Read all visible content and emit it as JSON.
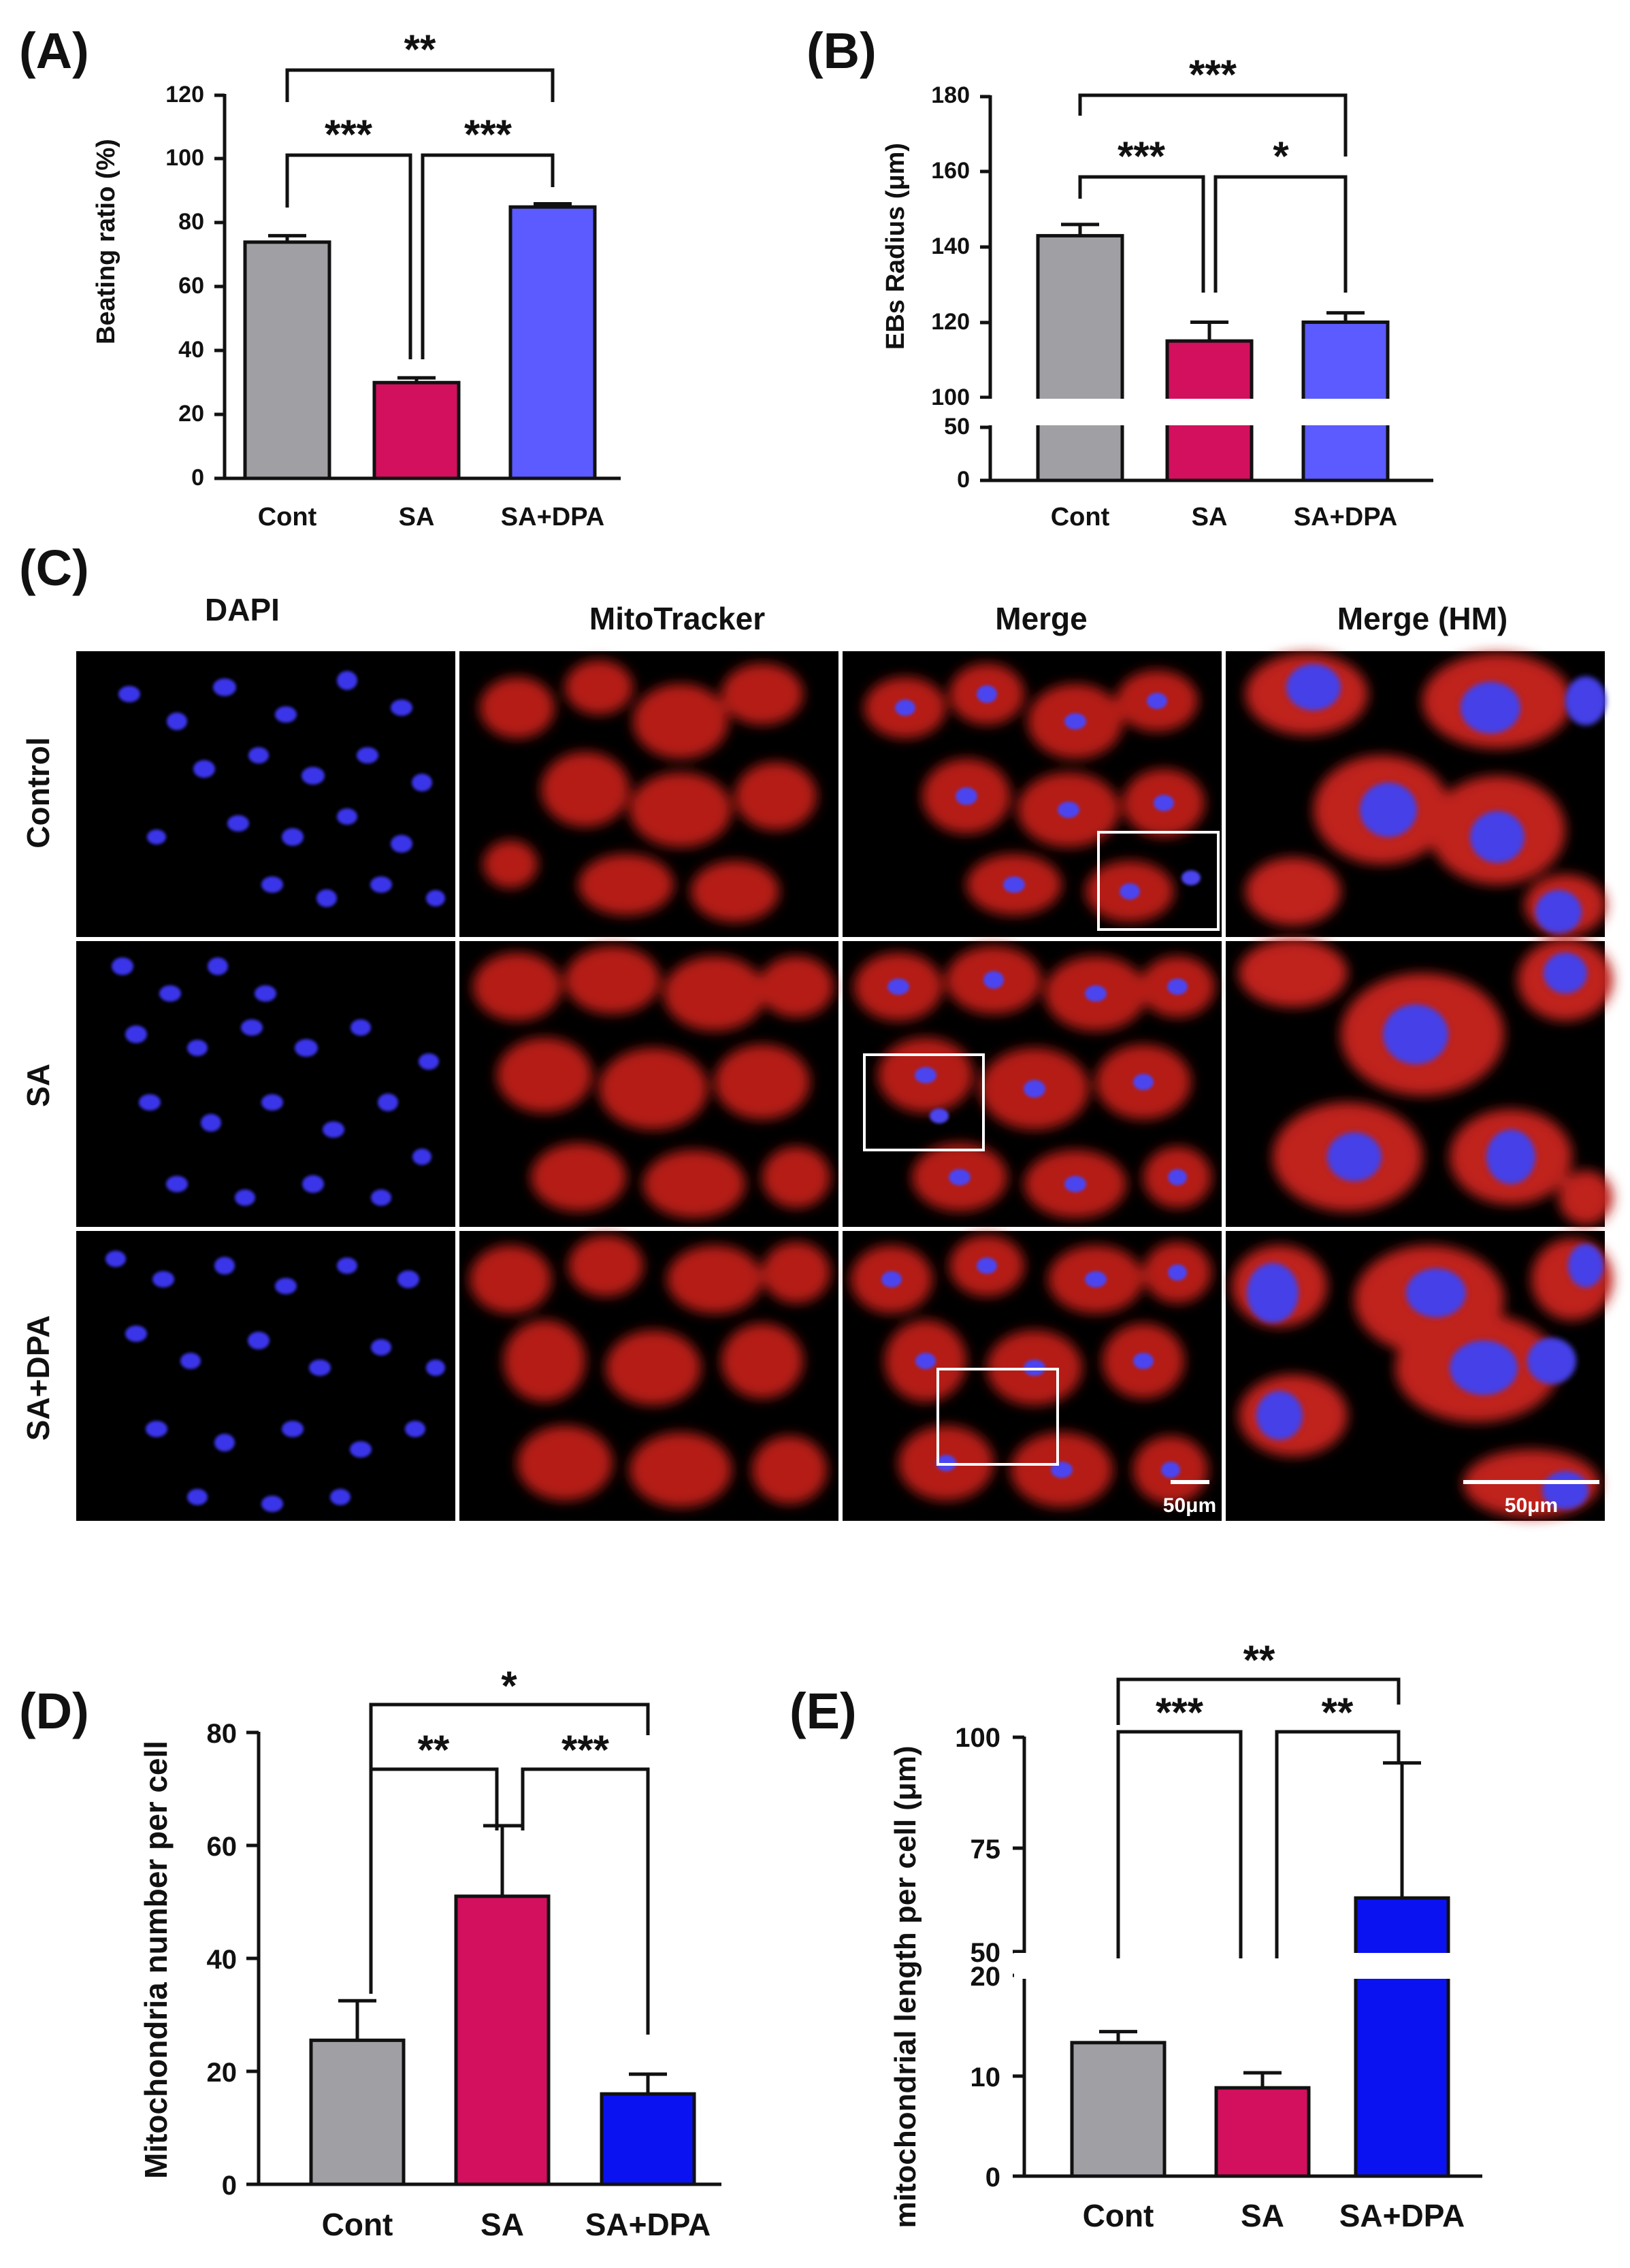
{
  "chart_data": [
    {
      "panel": "(A)",
      "type": "bar",
      "categories": [
        "Cont",
        "SA",
        "SA+DPA"
      ],
      "values": [
        74,
        30,
        85
      ],
      "errors": [
        2,
        1.5,
        1
      ],
      "colors": [
        "#a0a0a4",
        "#d2105e",
        "#5b5bff"
      ],
      "ylabel": "Beating ratio (%)",
      "ylim": [
        0,
        120
      ],
      "yticks": [
        "0",
        "20",
        "40",
        "60",
        "80",
        "100",
        "120"
      ],
      "significance": [
        {
          "from": "Cont",
          "to": "SA+DPA",
          "label": "**"
        },
        {
          "from": "Cont",
          "to": "SA",
          "label": "***"
        },
        {
          "from": "SA",
          "to": "SA+DPA",
          "label": "***"
        }
      ]
    },
    {
      "panel": "(B)",
      "type": "bar",
      "categories": [
        "Cont",
        "SA",
        "SA+DPA"
      ],
      "values": [
        143,
        115,
        120
      ],
      "errors": [
        3,
        5,
        2.5
      ],
      "colors": [
        "#a0a0a4",
        "#d2105e",
        "#5b5bff"
      ],
      "ylabel": "EBs Radius (μm)",
      "axis_break": [
        50,
        100
      ],
      "yticks": [
        "0",
        "50",
        "100",
        "120",
        "140",
        "160",
        "180"
      ],
      "significance": [
        {
          "from": "Cont",
          "to": "SA+DPA",
          "label": "***"
        },
        {
          "from": "Cont",
          "to": "SA",
          "label": "***"
        },
        {
          "from": "SA",
          "to": "SA+DPA",
          "label": "*"
        }
      ]
    },
    {
      "panel": "(D)",
      "type": "bar",
      "categories": [
        "Cont",
        "SA",
        "SA+DPA"
      ],
      "values": [
        25.5,
        51,
        16
      ],
      "errors": [
        7,
        12.5,
        3.5
      ],
      "colors": [
        "#a0a0a4",
        "#d2105e",
        "#0b12f2"
      ],
      "ylabel": "Mitochondria number per cell",
      "ylim": [
        0,
        80
      ],
      "yticks": [
        "0",
        "20",
        "40",
        "60",
        "80"
      ],
      "significance": [
        {
          "from": "Cont",
          "to": "SA+DPA",
          "label": "*"
        },
        {
          "from": "Cont",
          "to": "SA",
          "label": "**"
        },
        {
          "from": "SA",
          "to": "SA+DPA",
          "label": "***"
        }
      ]
    },
    {
      "panel": "(E)",
      "type": "bar",
      "categories": [
        "Cont",
        "SA",
        "SA+DPA"
      ],
      "values": [
        13.3,
        8.8,
        62.5
      ],
      "errors": [
        1.1,
        1.5,
        31.5
      ],
      "colors": [
        "#a0a0a4",
        "#d2105e",
        "#0b12f2"
      ],
      "ylabel": "mitochondrial length per cell (μm)",
      "axis_break": [
        20,
        50
      ],
      "yticks": [
        "0",
        "10",
        "20",
        "50",
        "75",
        "100"
      ],
      "significance": [
        {
          "from": "Cont",
          "to": "SA+DPA",
          "label": "**"
        },
        {
          "from": "Cont",
          "to": "SA",
          "label": "***"
        },
        {
          "from": "SA",
          "to": "SA+DPA",
          "label": "**"
        }
      ]
    }
  ],
  "panel_c": {
    "label": "(C)",
    "columns": [
      "DAPI",
      "MitoTracker",
      "Merge",
      "Merge (HM)"
    ],
    "rows": [
      "Control",
      "SA",
      "SA+DPA"
    ],
    "scale_bar_left": "50μm",
    "scale_bar_right": "50μm"
  }
}
